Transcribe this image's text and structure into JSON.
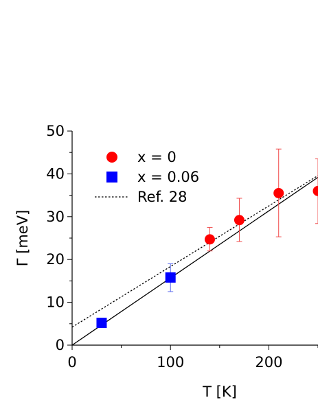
{
  "chart_data": {
    "type": "scatter",
    "xlabel": "T [K]",
    "ylabel": "Γ [meV]",
    "xlim": [
      0,
      250
    ],
    "ylim": [
      0,
      50
    ],
    "xticks": [
      0,
      100,
      200
    ],
    "yticks": [
      0,
      10,
      20,
      30,
      40,
      50
    ],
    "grid": false,
    "legend_position": "top-left",
    "series": [
      {
        "name": "x = 0",
        "marker": "circle",
        "color": "#ff0000",
        "points": [
          {
            "x": 140,
            "y": 24.7,
            "err_lo": 22.0,
            "err_hi": 27.5
          },
          {
            "x": 170,
            "y": 29.2,
            "err_lo": 24.2,
            "err_hi": 34.3
          },
          {
            "x": 210,
            "y": 35.5,
            "err_lo": 25.3,
            "err_hi": 45.8
          },
          {
            "x": 250,
            "y": 36.0,
            "err_lo": 28.4,
            "err_hi": 43.5
          }
        ]
      },
      {
        "name": "x = 0.06",
        "marker": "square",
        "color": "#0000ff",
        "points": [
          {
            "x": 30,
            "y": 5.2,
            "err_lo": 4.6,
            "err_hi": 5.8
          },
          {
            "x": 100,
            "y": 15.8,
            "err_lo": 12.5,
            "err_hi": 19.0
          }
        ]
      }
    ],
    "lines": [
      {
        "name": "fit",
        "style": "solid",
        "color": "#000000",
        "x": [
          0,
          250
        ],
        "y": [
          0,
          39.2
        ]
      },
      {
        "name": "Ref. 28",
        "style": "dotted",
        "color": "#000000",
        "x": [
          0,
          250
        ],
        "y": [
          4.2,
          39.6
        ]
      }
    ]
  }
}
